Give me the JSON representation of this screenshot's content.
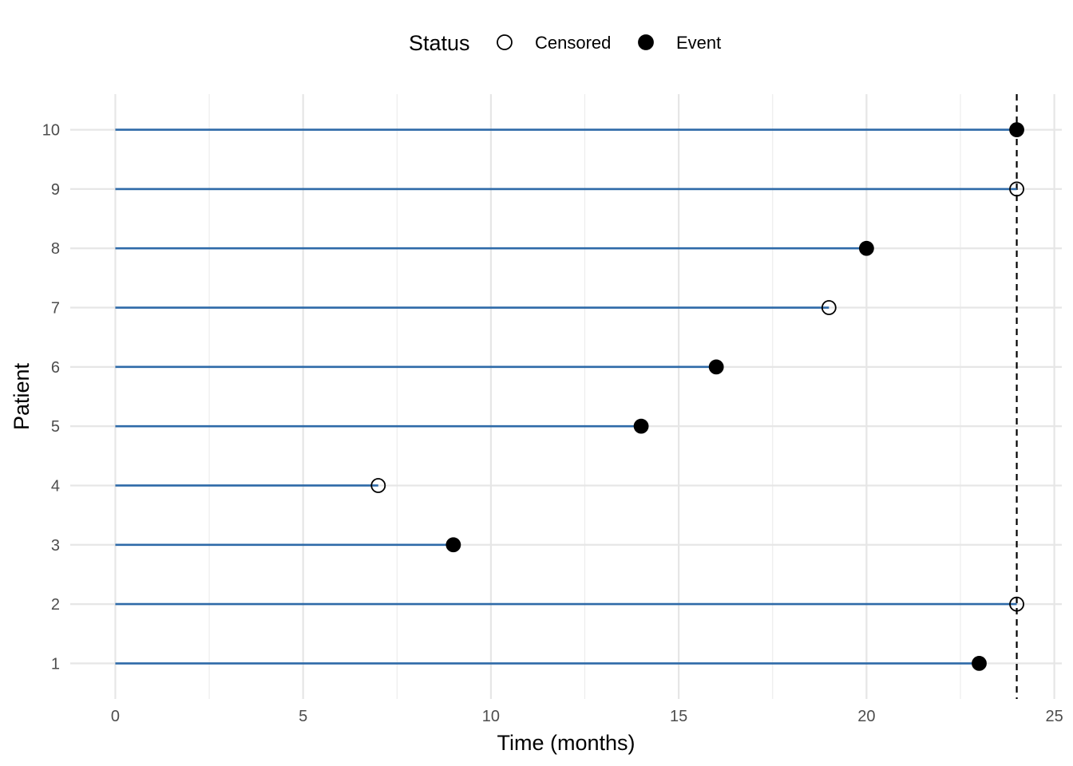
{
  "chart_data": {
    "type": "scatter",
    "subtype": "swimmer-lollipop",
    "title": "",
    "xlabel": "Time (months)",
    "ylabel": "Patient",
    "xlim": [
      -1.2,
      25.2
    ],
    "ylim": [
      0.4,
      10.6
    ],
    "x_ticks": [
      0,
      5,
      10,
      15,
      20,
      25
    ],
    "y_ticks": [
      1,
      2,
      3,
      4,
      5,
      6,
      7,
      8,
      9,
      10
    ],
    "grid": true,
    "legend": {
      "title": "Status",
      "position": "top",
      "entries": [
        {
          "label": "Censored",
          "marker": "open-circle"
        },
        {
          "label": "Event",
          "marker": "filled-circle"
        }
      ]
    },
    "reference_line": {
      "x": 24,
      "style": "dashed",
      "color": "#000000"
    },
    "line_color": "#2E6AA8",
    "patients": [
      {
        "patient": 1,
        "time": 23,
        "status": "Event"
      },
      {
        "patient": 2,
        "time": 24,
        "status": "Censored"
      },
      {
        "patient": 3,
        "time": 9,
        "status": "Event"
      },
      {
        "patient": 4,
        "time": 7,
        "status": "Censored"
      },
      {
        "patient": 5,
        "time": 14,
        "status": "Event"
      },
      {
        "patient": 6,
        "time": 16,
        "status": "Event"
      },
      {
        "patient": 7,
        "time": 19,
        "status": "Censored"
      },
      {
        "patient": 8,
        "time": 20,
        "status": "Event"
      },
      {
        "patient": 9,
        "time": 24,
        "status": "Censored"
      },
      {
        "patient": 10,
        "time": 24,
        "status": "Event"
      }
    ]
  }
}
